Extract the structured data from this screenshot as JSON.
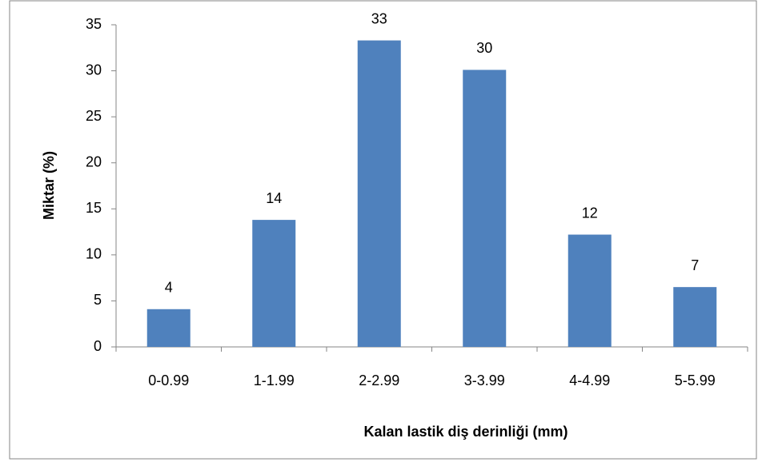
{
  "chart_data": {
    "type": "bar",
    "categories": [
      "0-0.99",
      "1-1.99",
      "2-2.99",
      "3-3.99",
      "4-4.99",
      "5-5.99"
    ],
    "values": [
      4.1,
      13.8,
      33.3,
      30.1,
      12.2,
      6.5
    ],
    "value_labels": [
      "4",
      "14",
      "33",
      "30",
      "12",
      "7"
    ],
    "color": "#4f81bd",
    "x_label": "Kalan lastik diş derinliği (mm)",
    "y_label": "Miktar (%)",
    "ylim": [
      0,
      35
    ],
    "yticks": [
      0,
      5,
      10,
      15,
      20,
      25,
      30,
      35
    ],
    "grid": false
  }
}
